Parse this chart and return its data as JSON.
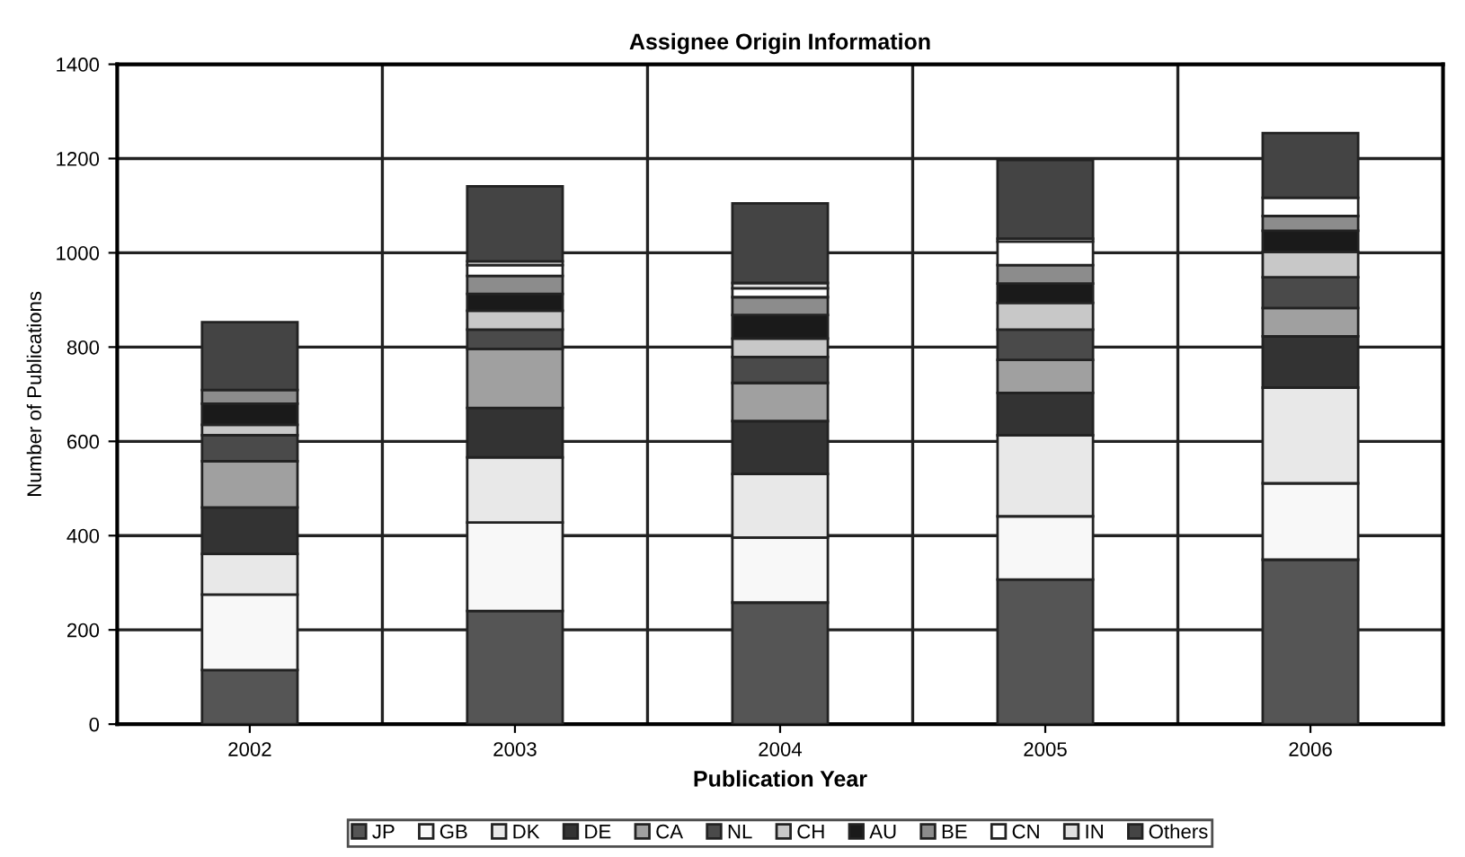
{
  "chart_data": {
    "type": "bar",
    "title": "Assignee Origin Information",
    "xlabel": "Publication Year",
    "ylabel": "Number of Publications",
    "categories": [
      "2002",
      "2003",
      "2004",
      "2005",
      "2006"
    ],
    "stacked": true,
    "series": [
      {
        "name": "JP",
        "color": "#555555",
        "values": [
          115,
          240,
          258,
          307,
          349
        ]
      },
      {
        "name": "GB",
        "color": "#f8f8f8",
        "values": [
          160,
          188,
          138,
          134,
          162
        ]
      },
      {
        "name": "DK",
        "color": "#e8e8e8",
        "values": [
          86,
          138,
          135,
          172,
          203
        ]
      },
      {
        "name": "DE",
        "color": "#333333",
        "values": [
          99,
          105,
          112,
          90,
          109
        ]
      },
      {
        "name": "CA",
        "color": "#a0a0a0",
        "values": [
          98,
          125,
          81,
          70,
          60
        ]
      },
      {
        "name": "NL",
        "color": "#4a4a4a",
        "values": [
          55,
          41,
          55,
          64,
          65
        ]
      },
      {
        "name": "CH",
        "color": "#c8c8c8",
        "values": [
          22,
          40,
          39,
          57,
          54
        ]
      },
      {
        "name": "AU",
        "color": "#1a1a1a",
        "values": [
          45,
          36,
          50,
          41,
          45
        ]
      },
      {
        "name": "BE",
        "color": "#8c8c8c",
        "values": [
          29,
          38,
          38,
          39,
          31
        ]
      },
      {
        "name": "CN",
        "color": "#ffffff",
        "values": [
          null,
          23,
          19,
          50,
          39
        ]
      },
      {
        "name": "IN",
        "color": "#e0e0e0",
        "values": [
          null,
          8,
          11,
          6,
          null
        ]
      },
      {
        "name": "Others",
        "color": "#444444",
        "values": [
          144,
          159,
          169,
          167,
          137
        ]
      }
    ],
    "ylim": [
      0,
      1400
    ],
    "yticks": [
      0,
      200,
      400,
      600,
      800,
      1000,
      1200,
      1400
    ],
    "grid": true,
    "legend": "bottom"
  }
}
